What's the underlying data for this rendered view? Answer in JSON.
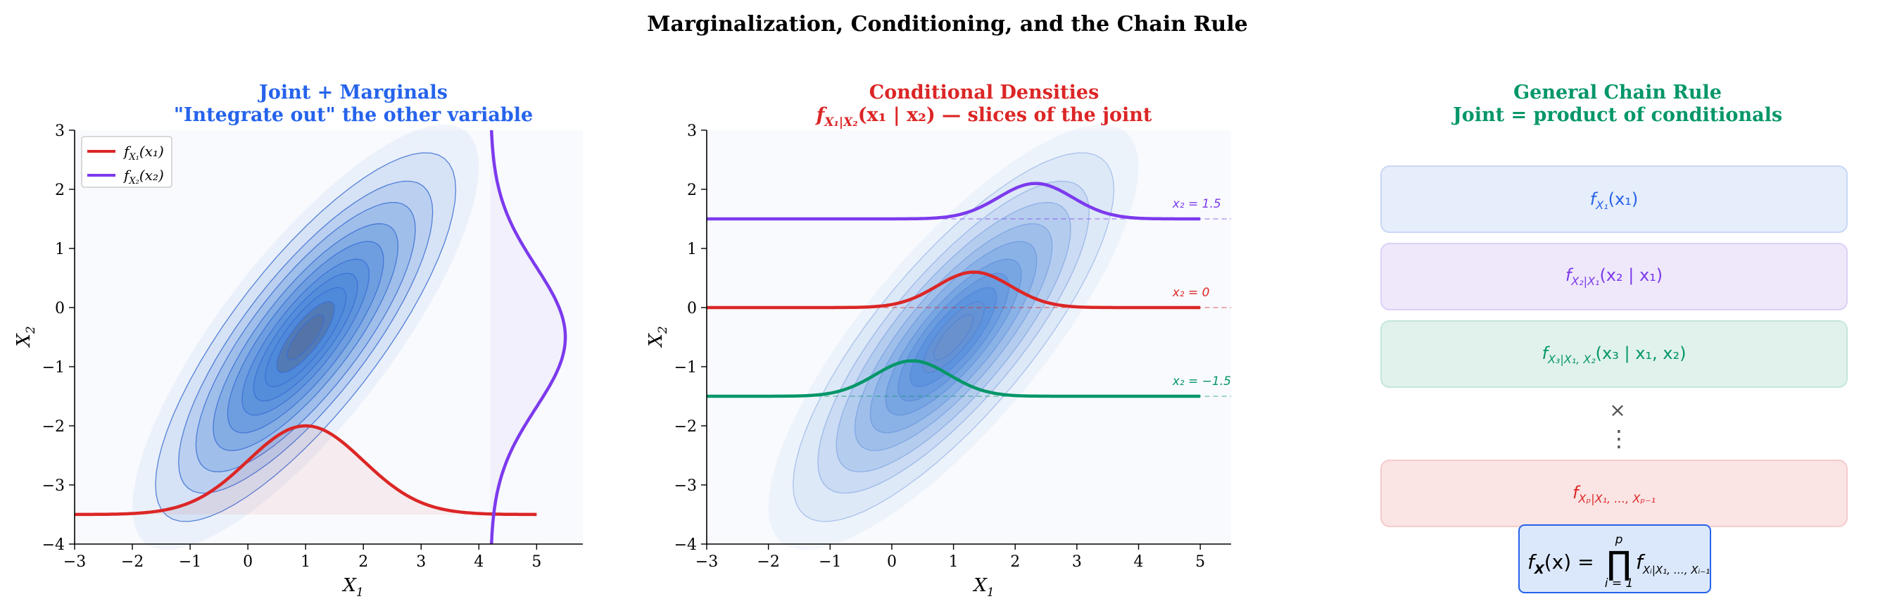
{
  "figure_title": "Marginalization, Conditioning, and the Chain Rule",
  "colors": {
    "blue_title": "#2563eb",
    "red": "#dc2626",
    "purple": "#7c3aed",
    "green": "#059669",
    "contour": "#3b6fd4",
    "plot_bg": "#f8fafd",
    "axis": "#000000"
  },
  "chart_data": [
    {
      "type": "contour",
      "title": "Joint + Marginals",
      "subtitle": "\"Integrate out\" the other variable",
      "xlabel": "X",
      "xlabel_sub": "1",
      "ylabel": "X",
      "ylabel_sub": "2",
      "xlim": [
        -3,
        5.8
      ],
      "ylim": [
        -4,
        3
      ],
      "xticks": [
        "−3",
        "−2",
        "−1",
        "0",
        "1",
        "2",
        "3",
        "4",
        "5"
      ],
      "yticks": [
        "3",
        "2",
        "1",
        "0",
        "−1",
        "−2",
        "−3",
        "−4"
      ],
      "joint": {
        "mean": [
          1,
          -0.5
        ],
        "sd": [
          1,
          1.2
        ],
        "rho": 0.8
      },
      "marginals": [
        {
          "name": "f",
          "sub": "X₁",
          "arg": "(x₁)",
          "axis": "x",
          "baseline": -3.5,
          "scale": 3.76,
          "mean": 1,
          "sd": 1,
          "color": "#dc2626"
        },
        {
          "name": "f",
          "sub": "X₂",
          "arg": "(x₂)",
          "axis": "y",
          "baseline": 4.2,
          "scale": 3.9,
          "mean": -0.5,
          "sd": 1.2,
          "color": "#7c3aed"
        }
      ],
      "legend_placement": "top-left",
      "grid": false
    },
    {
      "type": "contour",
      "title": "Conditional Densities",
      "subtitle_parts": [
        "f",
        "X₁|X₂",
        "(x₁ | x₂) — slices of the joint"
      ],
      "xlabel": "X",
      "xlabel_sub": "1",
      "ylabel": "X",
      "ylabel_sub": "2",
      "xlim": [
        -3,
        5.5
      ],
      "ylim": [
        -4,
        3
      ],
      "xticks": [
        "−3",
        "−2",
        "−1",
        "0",
        "1",
        "2",
        "3",
        "4",
        "5"
      ],
      "yticks": [
        "3",
        "2",
        "1",
        "0",
        "−1",
        "−2",
        "−3",
        "−4"
      ],
      "joint": {
        "mean": [
          1,
          -0.5
        ],
        "sd": [
          1,
          1.2
        ],
        "rho": 0.8
      },
      "slices": [
        {
          "x2": 1.5,
          "label": "x₂ = 1.5",
          "cond_mean": 2.33,
          "cond_sd": 0.6,
          "peak": 0.6,
          "color": "#7c3aed"
        },
        {
          "x2": 0,
          "label": "x₂ = 0",
          "cond_mean": 1.33,
          "cond_sd": 0.6,
          "peak": 0.6,
          "color": "#dc2626"
        },
        {
          "x2": -1.5,
          "label": "x₂ = −1.5",
          "cond_mean": 0.33,
          "cond_sd": 0.6,
          "peak": 0.6,
          "color": "#059669"
        }
      ],
      "grid": false
    }
  ],
  "chain_rule": {
    "title": "General Chain Rule",
    "subtitle": "Joint = product of conditionals",
    "boxes": [
      {
        "f": "f",
        "sub": "X₁",
        "args": "(x₁)",
        "color": "#2563eb",
        "fill": "#e6edfb",
        "stroke": "#c9d8f6"
      },
      {
        "f": "f",
        "sub": "X₂|X₁",
        "args": "(x₂ | x₁)",
        "color": "#7c3aed",
        "fill": "#efe8fb",
        "stroke": "#ddd0f6"
      },
      {
        "f": "f",
        "sub": "X₃|X₁, X₂",
        "args": "(x₃ | x₁, x₂)",
        "color": "#059669",
        "fill": "#e1f2ec",
        "stroke": "#c5e6da"
      },
      {
        "f": "f",
        "sub": "Xₚ|X₁, …, Xₚ₋₁",
        "args": "",
        "color": "#dc2626",
        "fill": "#fbe4e4",
        "stroke": "#f5cccc"
      }
    ],
    "times_symbol": "×",
    "dots_symbol": "⋮",
    "formula": {
      "lhs": "f",
      "lhs_sub": "X",
      "lhs_arg": "(x) =",
      "prod": "∏",
      "upper": "p",
      "lower": "i = 1",
      "rhs": "f",
      "rhs_sub": "Xᵢ|X₁, …, Xᵢ₋₁"
    }
  }
}
